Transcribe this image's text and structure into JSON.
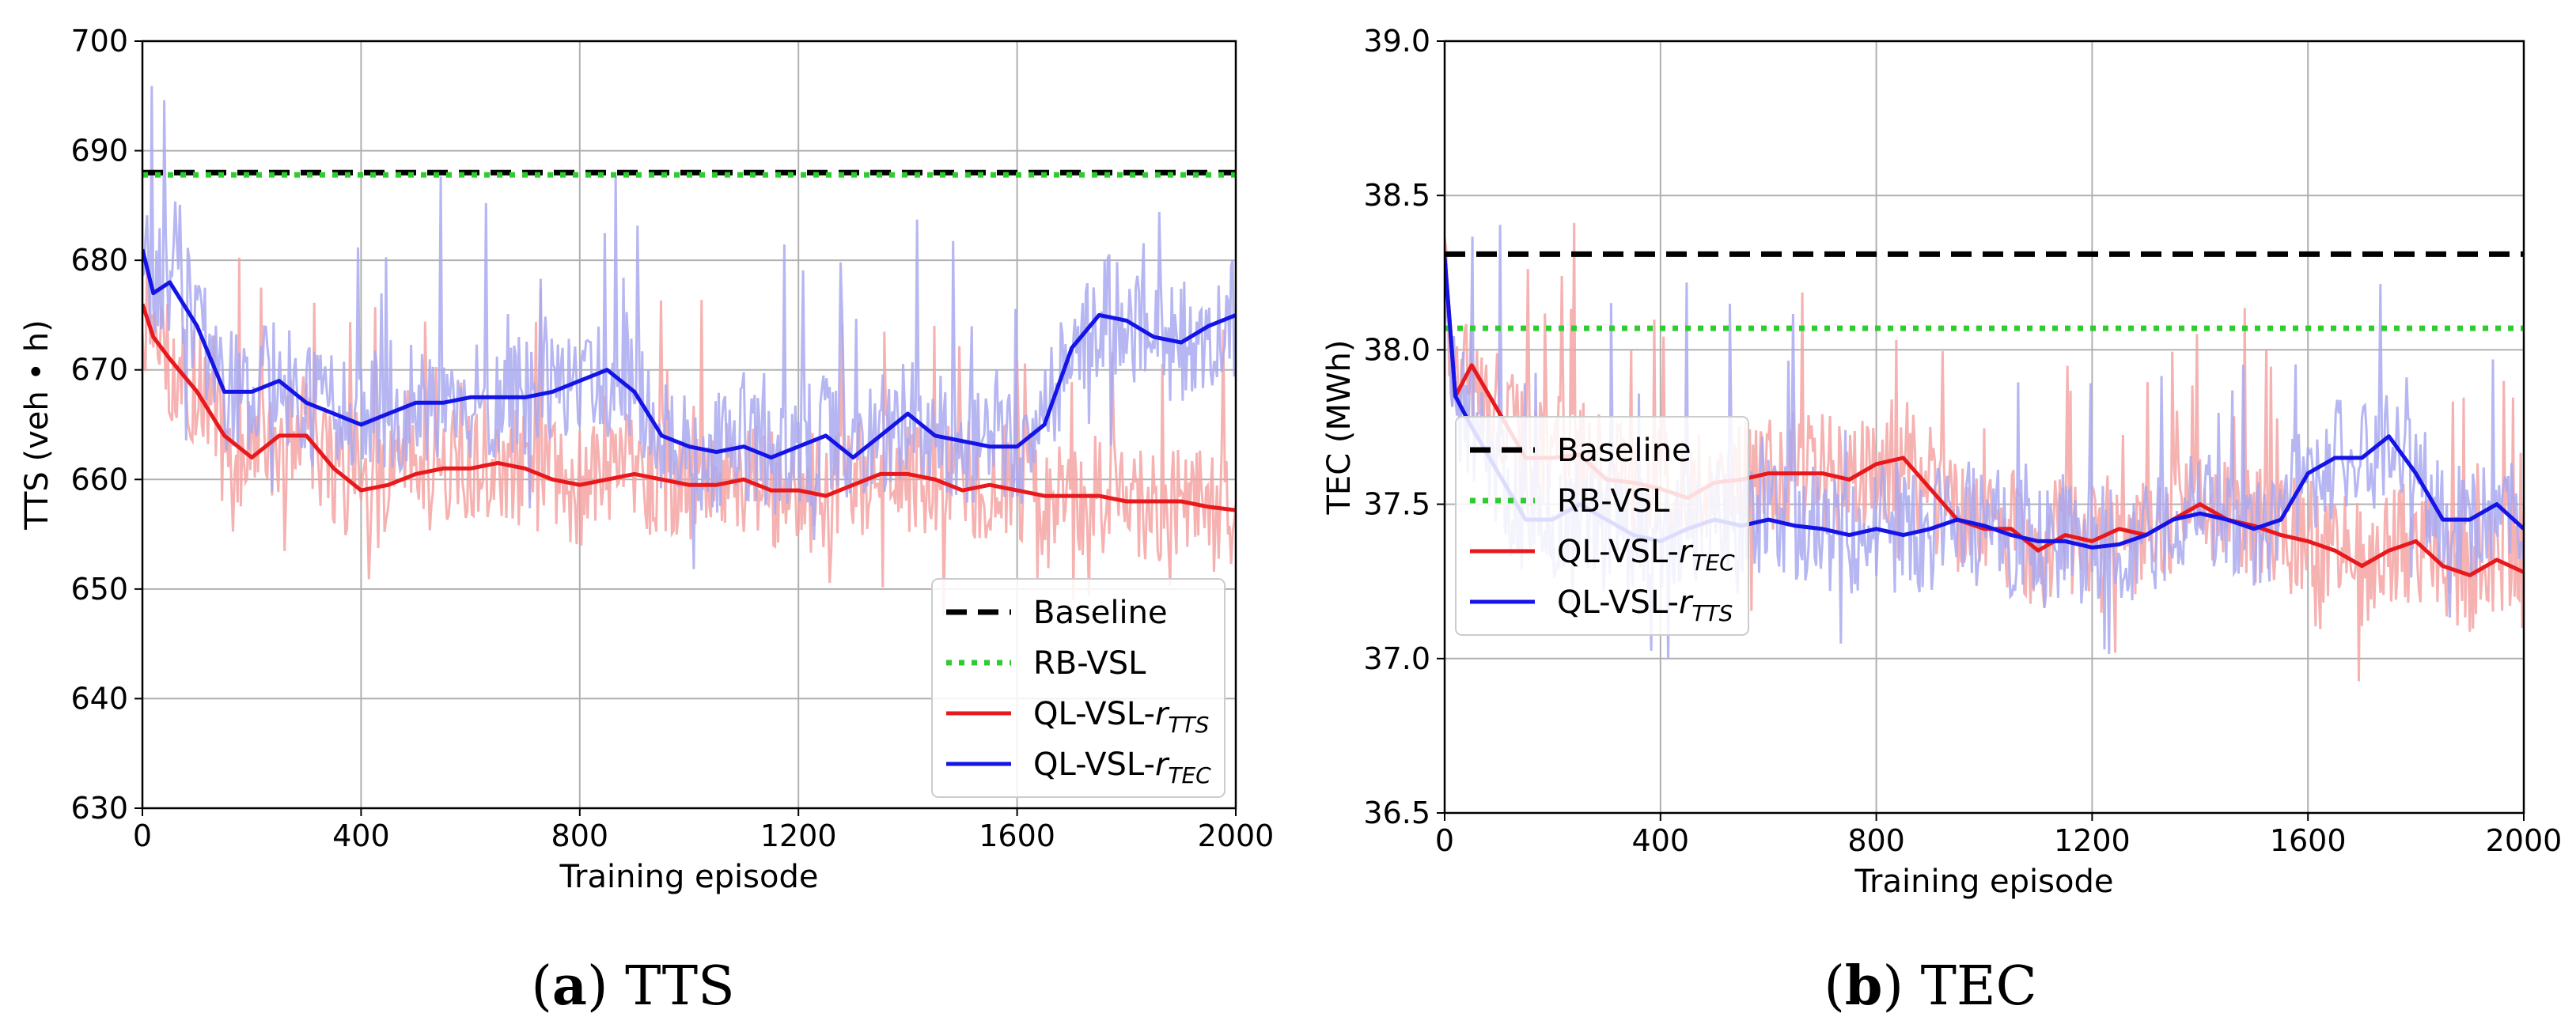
{
  "chart_data": [
    {
      "type": "line",
      "caption_letter": "a",
      "caption_text": "TTS",
      "xlabel": "Training episode",
      "ylabel": "TTS (veh • h)",
      "xlim": [
        0,
        2000
      ],
      "ylim": [
        630,
        700
      ],
      "xticks": [
        0,
        400,
        800,
        1200,
        1600,
        2000
      ],
      "yticks": [
        630,
        640,
        650,
        660,
        670,
        680,
        690,
        700
      ],
      "grid": true,
      "legend_position": "lower-right",
      "series": [
        {
          "name": "Baseline",
          "style": "dashed",
          "color": "#000000",
          "x": [
            0,
            2000
          ],
          "y": [
            688,
            688
          ]
        },
        {
          "name": "RB-VSL",
          "style": "dotted",
          "color": "#2ecc2e",
          "x": [
            0,
            2000
          ],
          "y": [
            687.8,
            687.8
          ]
        },
        {
          "name": "QL-VSL-",
          "subscript": "TTS",
          "style": "solid",
          "color": "#e8191c",
          "raw_color": "#f5a3a3",
          "x": [
            0,
            20,
            50,
            100,
            150,
            200,
            250,
            300,
            350,
            400,
            450,
            500,
            550,
            600,
            650,
            700,
            750,
            800,
            850,
            900,
            950,
            1000,
            1050,
            1100,
            1150,
            1200,
            1250,
            1300,
            1350,
            1400,
            1450,
            1500,
            1550,
            1600,
            1650,
            1700,
            1750,
            1800,
            1850,
            1900,
            1950,
            2000
          ],
          "y": [
            676,
            673,
            671,
            668,
            664,
            662,
            664,
            664,
            661,
            659,
            659.5,
            660.5,
            661,
            661,
            661.5,
            661,
            660,
            659.5,
            660,
            660.5,
            660,
            659.5,
            659.5,
            660,
            659,
            659,
            658.5,
            659.5,
            660.5,
            660.5,
            660,
            659,
            659.5,
            659,
            658.5,
            658.5,
            658.5,
            658,
            658,
            658,
            657.5,
            657.2
          ]
        },
        {
          "name": "QL-VSL-",
          "subscript": "TEC",
          "style": "solid",
          "color": "#1414e6",
          "raw_color": "#a9a9f0",
          "x": [
            0,
            20,
            50,
            100,
            150,
            200,
            250,
            300,
            350,
            400,
            450,
            500,
            550,
            600,
            650,
            700,
            750,
            800,
            850,
            900,
            950,
            1000,
            1050,
            1100,
            1150,
            1200,
            1250,
            1300,
            1350,
            1400,
            1450,
            1500,
            1550,
            1600,
            1650,
            1700,
            1750,
            1800,
            1850,
            1900,
            1950,
            2000
          ],
          "y": [
            681,
            677,
            678,
            674,
            668,
            668,
            669,
            667,
            666,
            665,
            666,
            667,
            667,
            667.5,
            667.5,
            667.5,
            668,
            669,
            670,
            668,
            664,
            663,
            662.5,
            663,
            662,
            663,
            664,
            662,
            664,
            666,
            664,
            663.5,
            663,
            663,
            665,
            672,
            675,
            674.5,
            673,
            672.5,
            674,
            675
          ]
        }
      ]
    },
    {
      "type": "line",
      "caption_letter": "b",
      "caption_text": "TEC",
      "xlabel": "Training episode",
      "ylabel": "TEC (MWh)",
      "xlim": [
        0,
        2000
      ],
      "ylim": [
        36.5,
        39.0
      ],
      "xticks": [
        0,
        400,
        800,
        1200,
        1600,
        2000
      ],
      "yticks": [
        "36.5",
        "37.0",
        "37.5",
        "38.0",
        "38.5",
        "39.0"
      ],
      "grid": true,
      "legend_position": "lower-left",
      "series": [
        {
          "name": "Baseline",
          "style": "dashed",
          "color": "#000000",
          "x": [
            0,
            2000
          ],
          "y": [
            38.31,
            38.31
          ]
        },
        {
          "name": "RB-VSL",
          "style": "dotted",
          "color": "#2ecc2e",
          "x": [
            0,
            2000
          ],
          "y": [
            38.07,
            38.07
          ]
        },
        {
          "name": "QL-VSL-",
          "subscript": "TEC",
          "style": "solid",
          "color": "#e8191c",
          "raw_color": "#f5a3a3",
          "x": [
            0,
            20,
            50,
            100,
            150,
            200,
            250,
            300,
            350,
            400,
            450,
            500,
            550,
            600,
            650,
            700,
            750,
            800,
            850,
            900,
            950,
            1000,
            1050,
            1100,
            1150,
            1200,
            1250,
            1300,
            1350,
            1400,
            1450,
            1500,
            1550,
            1600,
            1650,
            1700,
            1750,
            1800,
            1850,
            1900,
            1950,
            2000
          ],
          "y": [
            38.3,
            37.85,
            37.95,
            37.8,
            37.65,
            37.65,
            37.66,
            37.58,
            37.57,
            37.55,
            37.52,
            37.57,
            37.58,
            37.6,
            37.6,
            37.6,
            37.58,
            37.63,
            37.65,
            37.55,
            37.45,
            37.42,
            37.42,
            37.35,
            37.4,
            37.38,
            37.42,
            37.4,
            37.45,
            37.5,
            37.45,
            37.43,
            37.4,
            37.38,
            37.35,
            37.3,
            37.35,
            37.38,
            37.3,
            37.27,
            37.32,
            37.28
          ]
        },
        {
          "name": "QL-VSL-",
          "subscript": "TTS",
          "style": "solid",
          "color": "#1414e6",
          "raw_color": "#a9a9f0",
          "x": [
            0,
            20,
            50,
            100,
            150,
            200,
            250,
            300,
            350,
            400,
            450,
            500,
            550,
            600,
            650,
            700,
            750,
            800,
            850,
            900,
            950,
            1000,
            1050,
            1100,
            1150,
            1200,
            1250,
            1300,
            1350,
            1400,
            1450,
            1500,
            1550,
            1600,
            1650,
            1700,
            1750,
            1800,
            1850,
            1900,
            1950,
            2000
          ],
          "y": [
            38.3,
            37.85,
            37.75,
            37.6,
            37.45,
            37.45,
            37.5,
            37.45,
            37.4,
            37.38,
            37.42,
            37.45,
            37.43,
            37.45,
            37.43,
            37.42,
            37.4,
            37.42,
            37.4,
            37.42,
            37.45,
            37.43,
            37.4,
            37.38,
            37.38,
            37.36,
            37.37,
            37.4,
            37.45,
            37.47,
            37.45,
            37.42,
            37.45,
            37.6,
            37.65,
            37.65,
            37.72,
            37.6,
            37.45,
            37.45,
            37.5,
            37.42
          ]
        }
      ]
    }
  ]
}
